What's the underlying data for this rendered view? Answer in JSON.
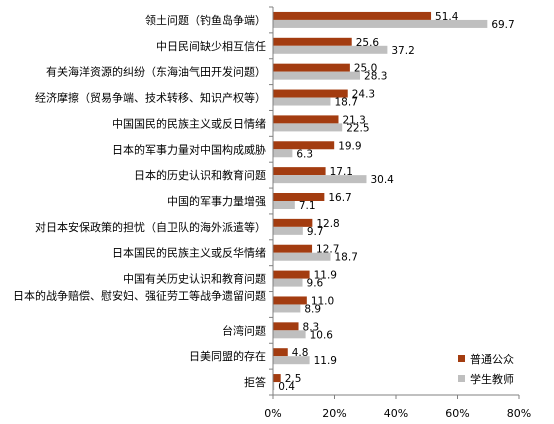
{
  "chart_data": {
    "type": "bar",
    "orientation": "horizontal",
    "categories": [
      "领土问题（钓鱼岛争端）",
      "中日民间缺少相互信任",
      "有关海洋资源的纠纷（东海油气田开发问题）",
      "经济摩擦（贸易争端、技术转移、知识产权等）",
      "中国国民的民族主义或反日情绪",
      "日本的军事力量对中国构成威胁",
      "日本的历史认识和教育问题",
      "中国的军事力量增强",
      "对日本安保政策的担忧（自卫队的海外派遣等）",
      "日本国民的民族主义或反华情绪",
      "中国有关历史认识和教育问题",
      "日本的战争赔偿、慰安妇、强征劳工等战争遗留问题",
      "台湾问题",
      "日美同盟的存在",
      "拒答"
    ],
    "series": [
      {
        "name": "普通公众",
        "color": "#a33c10",
        "values": [
          51.4,
          25.6,
          25.0,
          24.3,
          21.3,
          19.9,
          17.1,
          16.7,
          12.8,
          12.7,
          11.9,
          11.0,
          8.3,
          4.8,
          2.5
        ],
        "labels": [
          "51.4",
          "25.6",
          "25.0",
          "24.3",
          "21.3",
          "19.9",
          "17.1",
          "16.7",
          "12.8",
          "12.7",
          "11.9",
          "11.0",
          "8.3",
          "4.8",
          "2.5"
        ]
      },
      {
        "name": "学生教师",
        "color": "#bfbfbf",
        "values": [
          69.7,
          37.2,
          28.3,
          18.7,
          22.5,
          6.3,
          30.4,
          7.1,
          9.7,
          18.7,
          9.6,
          8.9,
          10.6,
          11.9,
          0.4
        ],
        "labels": [
          "69.7",
          "37.2",
          "28.3",
          "18.7",
          "22.5",
          "6.3",
          "30.4",
          "7.1",
          "9.7",
          "18.7",
          "9.6",
          "8.9",
          "10.6",
          "11.9",
          "0.4"
        ]
      }
    ],
    "xlim": [
      0,
      80
    ],
    "xticks": [
      "0%",
      "20%",
      "40%",
      "60%",
      "80%"
    ],
    "xtick_values": [
      0,
      20,
      40,
      60,
      80
    ],
    "legend_position": "bottom-right",
    "grid": false
  }
}
